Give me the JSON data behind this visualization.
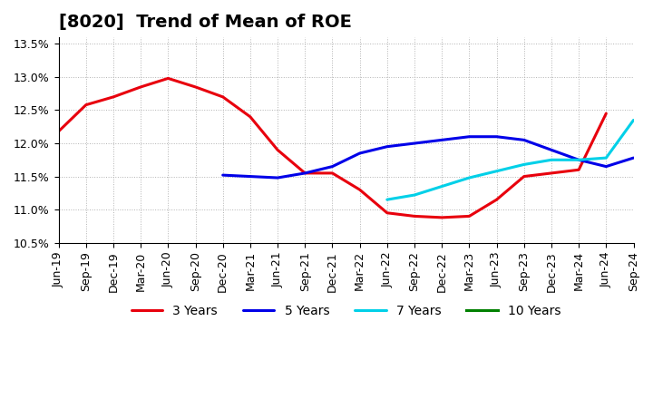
{
  "title": "[8020]  Trend of Mean of ROE",
  "ylim": [
    0.105,
    0.136
  ],
  "yticks": [
    0.105,
    0.11,
    0.115,
    0.12,
    0.125,
    0.13,
    0.135
  ],
  "background_color": "#ffffff",
  "grid_color": "#aaaaaa",
  "x_labels": [
    "Jun-19",
    "Sep-19",
    "Dec-19",
    "Mar-20",
    "Jun-20",
    "Sep-20",
    "Dec-20",
    "Mar-21",
    "Jun-21",
    "Sep-21",
    "Dec-21",
    "Mar-22",
    "Jun-22",
    "Sep-22",
    "Dec-22",
    "Mar-23",
    "Jun-23",
    "Sep-23",
    "Dec-23",
    "Mar-24",
    "Jun-24",
    "Sep-24"
  ],
  "series": {
    "3 Years": {
      "color": "#e8000d",
      "values": [
        0.1218,
        0.1258,
        0.127,
        0.1285,
        0.1298,
        0.1285,
        0.127,
        0.124,
        0.119,
        0.1155,
        0.1155,
        0.113,
        0.1095,
        0.109,
        0.1088,
        0.109,
        0.1115,
        0.115,
        0.1155,
        0.116,
        0.1245,
        null
      ]
    },
    "5 Years": {
      "color": "#0000e8",
      "values": [
        null,
        null,
        null,
        null,
        null,
        null,
        0.1152,
        0.115,
        0.1148,
        0.1155,
        0.1165,
        0.1185,
        0.1195,
        0.12,
        0.1205,
        0.121,
        0.121,
        0.1205,
        0.119,
        0.1175,
        0.1165,
        0.1178
      ]
    },
    "7 Years": {
      "color": "#00d0e8",
      "values": [
        null,
        null,
        null,
        null,
        null,
        null,
        null,
        null,
        null,
        null,
        null,
        null,
        0.1115,
        0.1122,
        0.1135,
        0.1148,
        0.1158,
        0.1168,
        0.1175,
        0.1175,
        0.1178,
        0.1235
      ]
    },
    "10 Years": {
      "color": "#008000",
      "values": [
        null,
        null,
        null,
        null,
        null,
        null,
        null,
        null,
        null,
        null,
        null,
        null,
        null,
        null,
        null,
        null,
        null,
        null,
        null,
        null,
        null,
        null
      ]
    }
  },
  "legend_order": [
    "3 Years",
    "5 Years",
    "7 Years",
    "10 Years"
  ],
  "title_fontsize": 14,
  "tick_fontsize": 9,
  "legend_fontsize": 10
}
